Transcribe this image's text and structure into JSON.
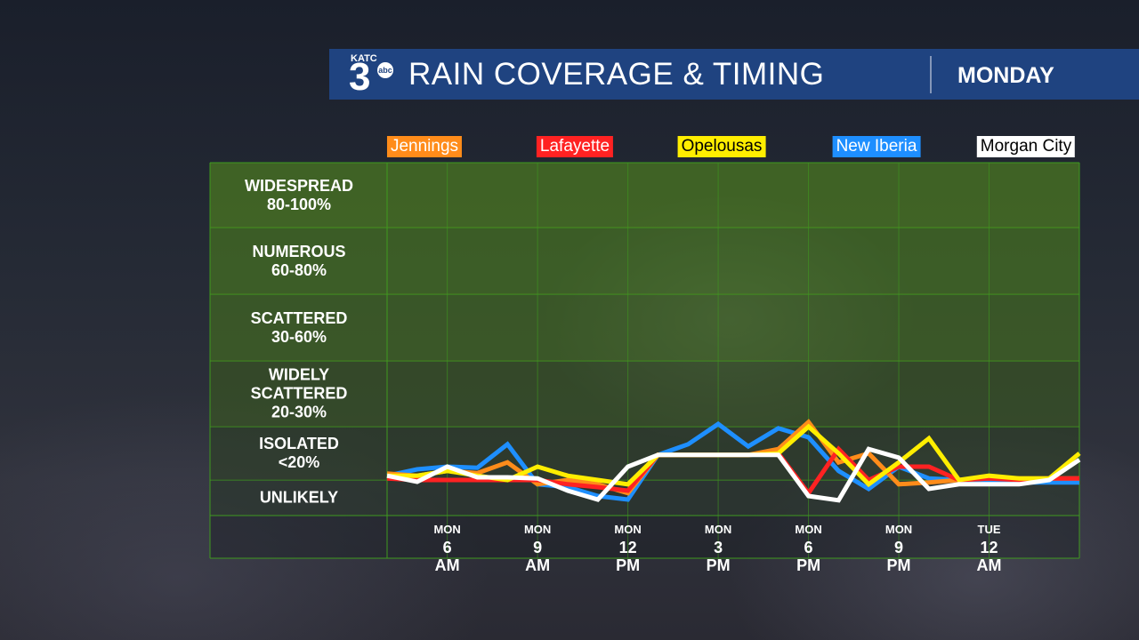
{
  "chart_data": {
    "type": "line",
    "logo": {
      "station": "KATC",
      "channel": "3",
      "network": "abc"
    },
    "title": "RAIN COVERAGE & TIMING",
    "subtitle": "MONDAY",
    "categories": [
      null,
      null,
      "MON\n6 AM",
      null,
      null,
      "MON\n9 AM",
      null,
      null,
      "MON\n12 PM",
      null,
      null,
      "MON\n3 PM",
      null,
      null,
      "MON\n6 PM",
      null,
      null,
      "MON\n9 PM",
      null,
      null,
      "TUE\n12 AM",
      null,
      null,
      null
    ],
    "ylim": [
      0,
      6
    ],
    "yticks": [
      {
        "value": 0.5,
        "label": "UNLIKELY"
      },
      {
        "value": 1.5,
        "label": "ISOLATED\n<20%"
      },
      {
        "value": 2.5,
        "label": "WIDELY\nSCATTERED\n20-30%"
      },
      {
        "value": 3.5,
        "label": "SCATTERED\n30-60%"
      },
      {
        "value": 4.5,
        "label": "NUMEROUS\n60-80%"
      },
      {
        "value": 5.5,
        "label": "WIDESPREAD\n80-100%"
      }
    ],
    "grid": true,
    "series": [
      {
        "name": "Jennings",
        "color": "#ff8c1a",
        "values": [
          1.12,
          1.08,
          1.17,
          1.13,
          1.33,
          0.88,
          1.0,
          0.88,
          0.63,
          1.47,
          1.47,
          1.47,
          1.47,
          1.58,
          2.07,
          1.33,
          1.5,
          0.88,
          0.93,
          1.0,
          1.03,
          1.03,
          1.03,
          1.03
        ]
      },
      {
        "name": "Lafayette",
        "color": "#ff2222",
        "values": [
          1.03,
          1.0,
          1.0,
          1.0,
          1.0,
          1.0,
          0.88,
          0.8,
          0.7,
          1.47,
          1.47,
          1.47,
          1.47,
          1.5,
          0.63,
          1.58,
          1.0,
          1.25,
          1.25,
          1.0,
          1.03,
          1.0,
          1.03,
          1.03
        ]
      },
      {
        "name": "Opelousas",
        "color": "#ffee00",
        "values": [
          1.08,
          1.08,
          1.17,
          1.08,
          1.0,
          1.25,
          1.08,
          1.0,
          0.88,
          1.47,
          1.47,
          1.47,
          1.47,
          1.5,
          2.0,
          1.5,
          0.88,
          1.33,
          1.78,
          1.0,
          1.08,
          1.03,
          1.03,
          1.5
        ]
      },
      {
        "name": "New Iberia",
        "color": "#1e8fff",
        "values": [
          1.08,
          1.2,
          1.25,
          1.23,
          1.67,
          0.88,
          0.8,
          0.55,
          0.45,
          1.47,
          1.67,
          2.04,
          1.63,
          1.97,
          1.8,
          1.17,
          0.75,
          1.25,
          1.03,
          1.0,
          1.0,
          0.93,
          0.93,
          0.93
        ]
      },
      {
        "name": "Morgan City",
        "color": "#ffffff",
        "values": [
          1.08,
          0.95,
          1.25,
          1.05,
          1.05,
          1.03,
          0.7,
          0.45,
          1.25,
          1.47,
          1.47,
          1.47,
          1.47,
          1.47,
          0.55,
          0.43,
          1.58,
          1.42,
          0.75,
          0.88,
          0.88,
          0.88,
          1.0,
          1.38
        ]
      }
    ]
  }
}
